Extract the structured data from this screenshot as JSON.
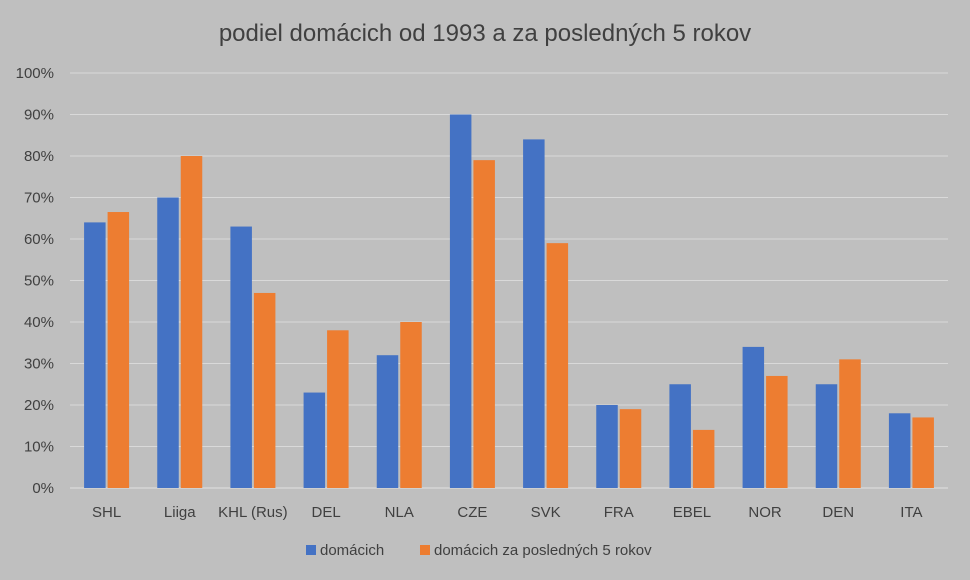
{
  "chart_data": {
    "type": "bar",
    "title": "podiel domácich od 1993 a za posledných 5 rokov",
    "xlabel": "",
    "ylabel": "",
    "categories": [
      "SHL",
      "Liiga",
      "KHL (Rus)",
      "DEL",
      "NLA",
      "CZE",
      "SVK",
      "FRA",
      "EBEL",
      "NOR",
      "DEN",
      "ITA"
    ],
    "series": [
      {
        "name": "domácich",
        "color": "#4472c4",
        "values": [
          0.64,
          0.7,
          0.63,
          0.23,
          0.32,
          0.9,
          0.84,
          0.2,
          0.25,
          0.34,
          0.25,
          0.18
        ]
      },
      {
        "name": "domácich za posledných 5 rokov",
        "color": "#ed7d31",
        "values": [
          0.665,
          0.8,
          0.47,
          0.38,
          0.4,
          0.79,
          0.59,
          0.19,
          0.14,
          0.27,
          0.31,
          0.17
        ]
      }
    ],
    "ylim": [
      0,
      1
    ],
    "yticks": [
      "0%",
      "10%",
      "20%",
      "30%",
      "40%",
      "50%",
      "60%",
      "70%",
      "80%",
      "90%",
      "100%"
    ],
    "grid": true,
    "legend_position": "bottom"
  }
}
